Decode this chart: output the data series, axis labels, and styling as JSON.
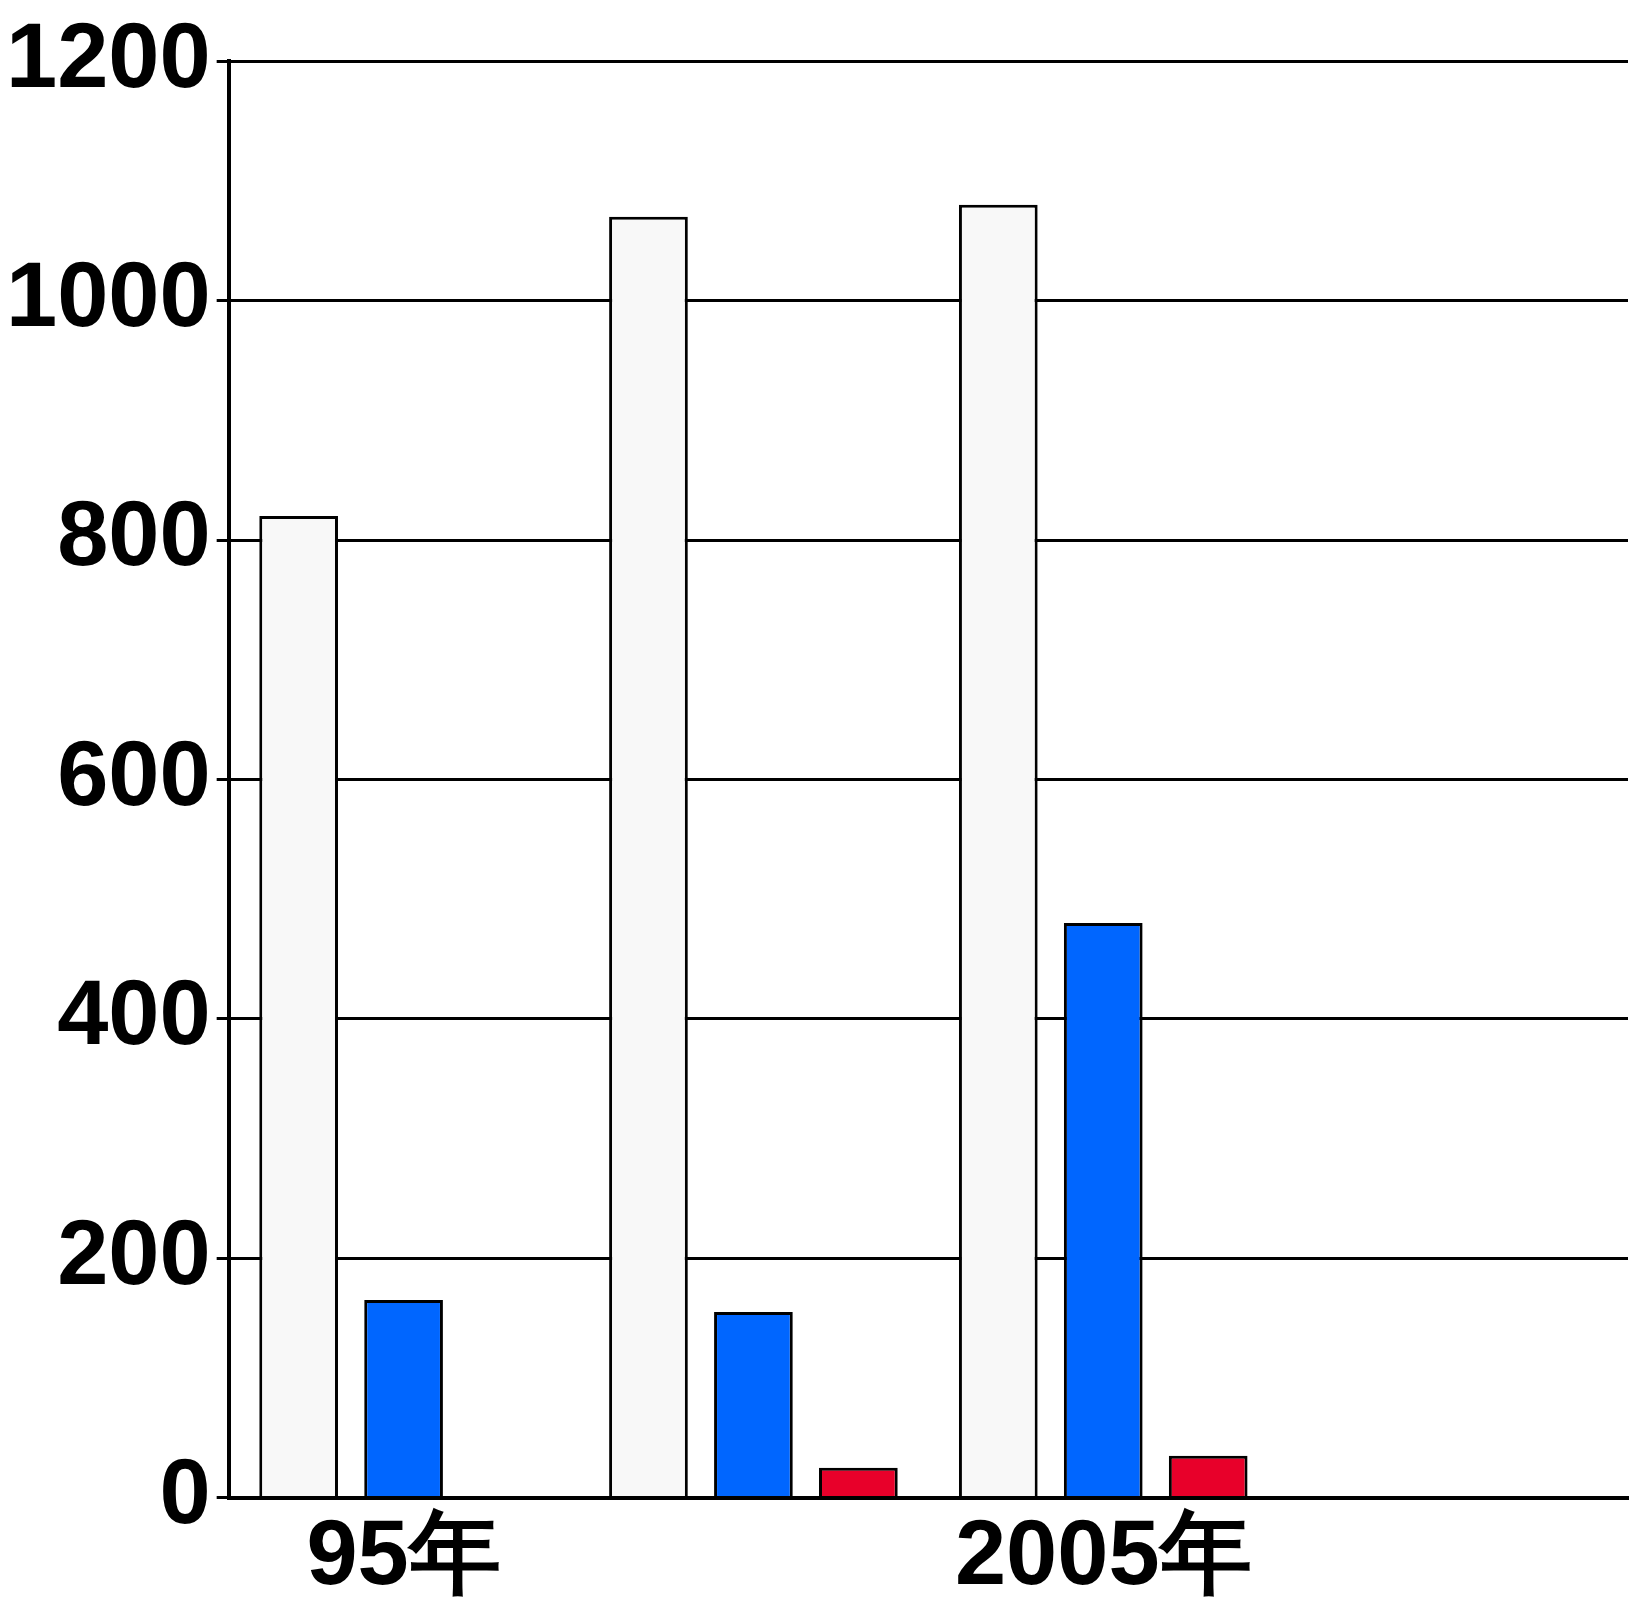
{
  "chart_data": {
    "type": "bar",
    "categories": [
      "95年",
      null,
      "2005年",
      null
    ],
    "series": [
      {
        "color": "#f8f8f8",
        "values": [
          820,
          1070,
          1080,
          null
        ]
      },
      {
        "color": "#0066ff",
        "values": [
          165,
          155,
          480,
          null
        ]
      },
      {
        "color": "#e8002a",
        "values": [
          null,
          25,
          35,
          null
        ]
      }
    ],
    "ylim": [
      0,
      1200
    ],
    "yticks": [
      0,
      200,
      400,
      600,
      800,
      1000,
      1200
    ],
    "grid": "y",
    "legend": false
  }
}
